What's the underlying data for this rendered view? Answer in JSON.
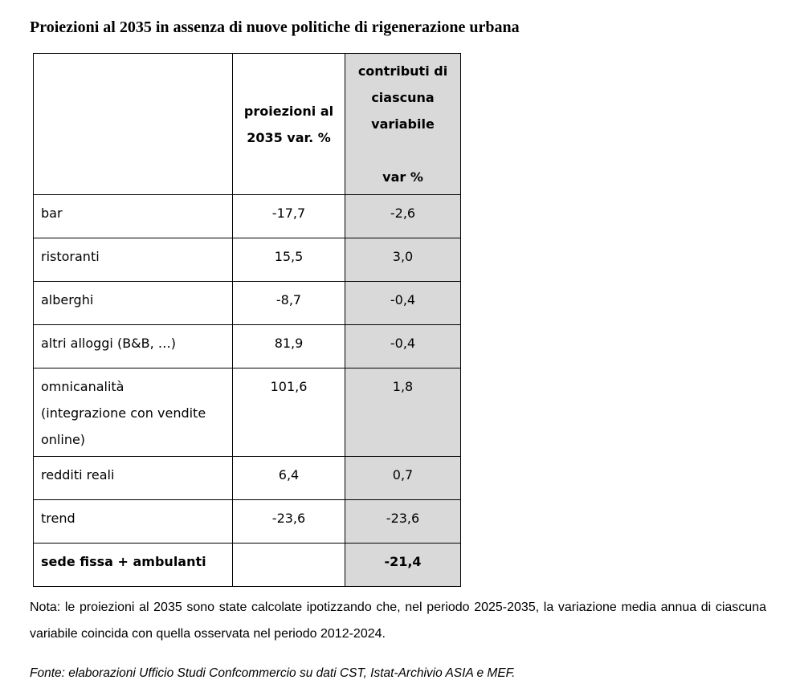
{
  "title": "Proiezioni al 2035 in assenza di nuove politiche di rigenerazione urbana",
  "table": {
    "header": {
      "col1": "",
      "col2": "proiezioni al\n2035 var. %",
      "col3": "contributi di\nciascuna\nvariabile\n\nvar %"
    },
    "rows": [
      {
        "label": "bar",
        "proj": "-17,7",
        "contrib": "-2,6"
      },
      {
        "label": "ristoranti",
        "proj": "15,5",
        "contrib": "3,0"
      },
      {
        "label": "alberghi",
        "proj": "-8,7",
        "contrib": "-0,4"
      },
      {
        "label": "altri alloggi (B&B, …)",
        "proj": "81,9",
        "contrib": "-0,4"
      },
      {
        "label": "omnicanalità\n(integrazione con vendite\nonline)",
        "proj": "101,6",
        "contrib": "1,8"
      },
      {
        "label": "redditi reali",
        "proj": "6,4",
        "contrib": "0,7"
      },
      {
        "label": "trend",
        "proj": "-23,6",
        "contrib": "-23,6"
      },
      {
        "label": "sede fissa + ambulanti",
        "proj": "",
        "contrib": "-21,4"
      }
    ]
  },
  "note": "Nota: le proiezioni al 2035 sono state calcolate ipotizzando che, nel periodo 2025-2035, la variazione media annua di ciascuna variabile coincida con quella osservata nel periodo 2012-2024.",
  "fonte": "Fonte: elaborazioni Ufficio Studi Confcommercio su dati CST, Istat-Archivio ASIA e MEF.",
  "colors": {
    "shaded_column": "#d9d9d9",
    "border": "#000000",
    "background": "#ffffff",
    "text": "#000000"
  }
}
